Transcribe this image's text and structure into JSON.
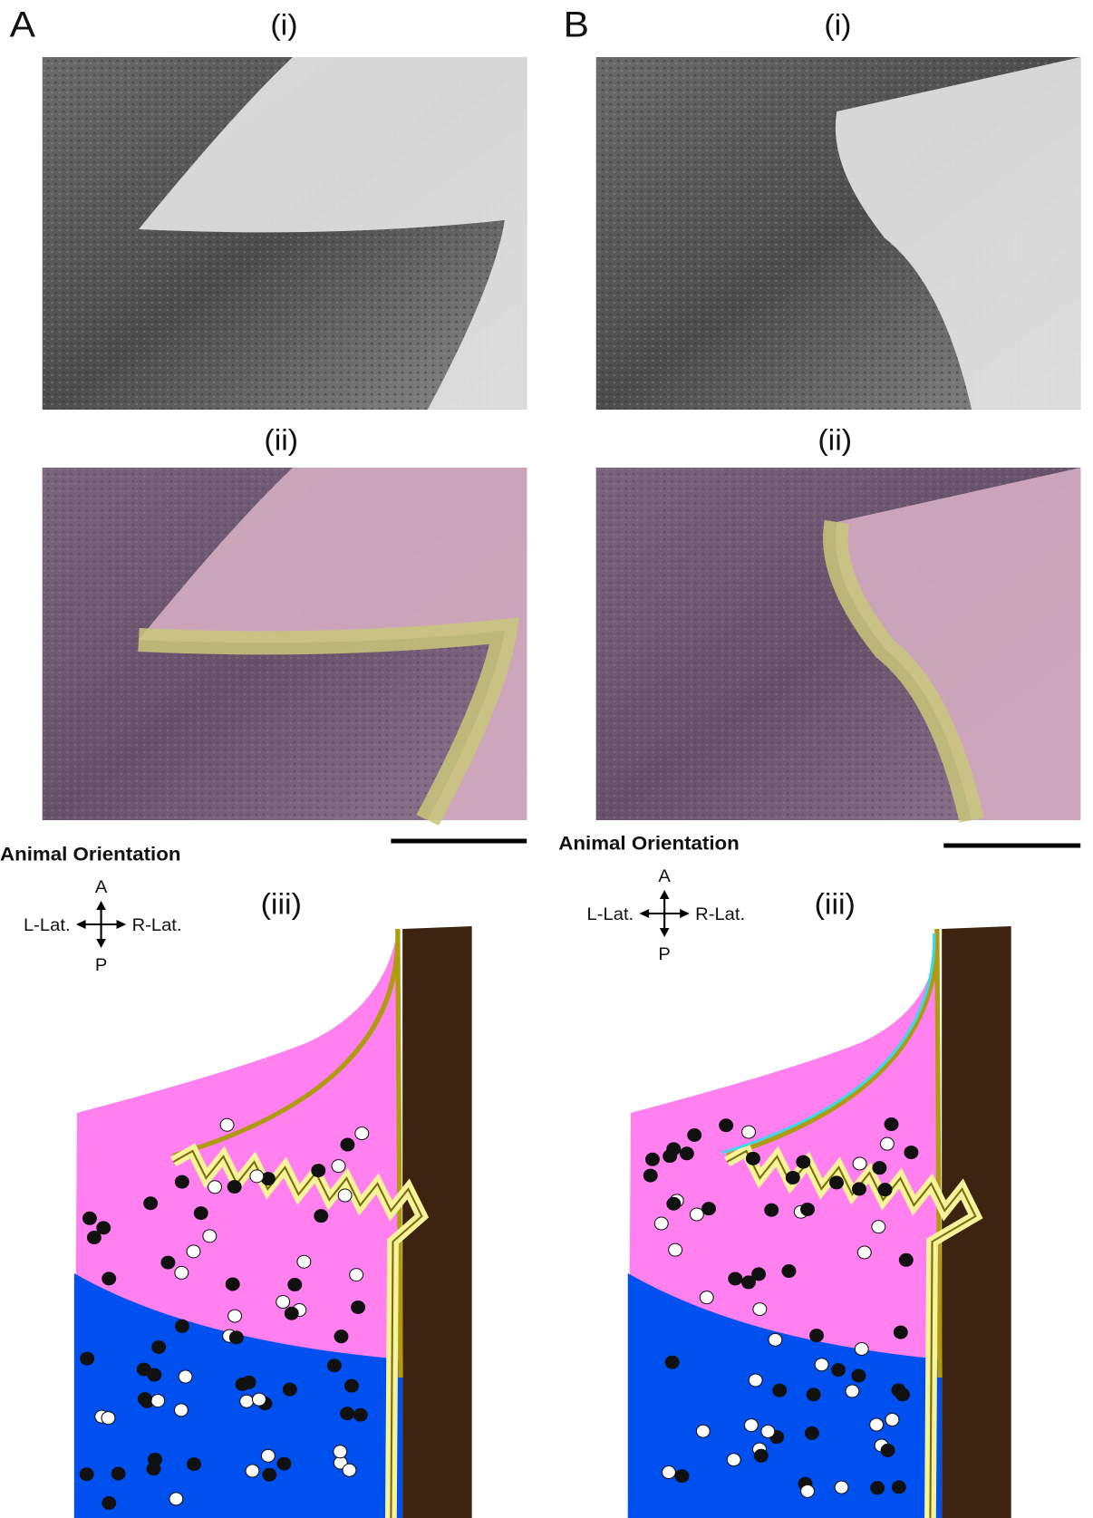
{
  "panels": [
    {
      "letter": "A",
      "sub_i": "(i)",
      "sub_ii": "(ii)",
      "sub_iii": "(iii)",
      "orientation": {
        "title": "Animal Orientation",
        "anterior": "A",
        "posterior": "P",
        "left": "L-Lat.",
        "right": "R-Lat."
      }
    },
    {
      "letter": "B",
      "sub_i": "(i)",
      "sub_ii": "(ii)",
      "sub_iii": "(iii)",
      "orientation": {
        "title": "Animal Orientation",
        "anterior": "A",
        "posterior": "P",
        "left": "L-Lat.",
        "right": "R-Lat."
      }
    }
  ]
}
